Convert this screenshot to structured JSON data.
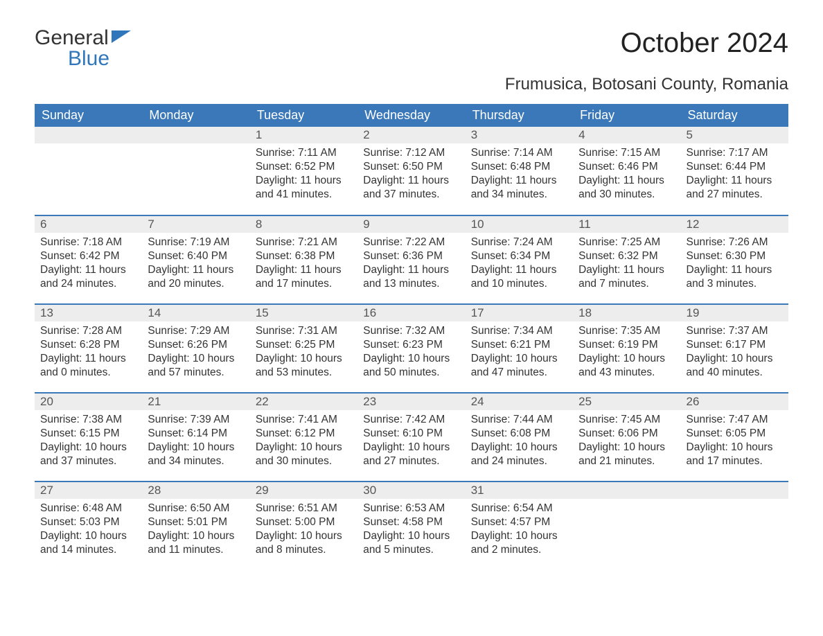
{
  "logo": {
    "line1": "General",
    "line2": "Blue",
    "flag_color": "#2f76bb"
  },
  "title": "October 2024",
  "location": "Frumusica, Botosani County, Romania",
  "colors": {
    "header_bg": "#3a78b9",
    "header_text": "#ffffff",
    "daynum_bg": "#ededed",
    "daynum_text": "#555555",
    "body_text": "#333333",
    "row_border": "#3a78b9",
    "page_bg": "#ffffff"
  },
  "fonts": {
    "title_size_pt": 30,
    "location_size_pt": 18,
    "dayhead_size_pt": 14,
    "daynum_size_pt": 13,
    "body_size_pt": 12
  },
  "day_headers": [
    "Sunday",
    "Monday",
    "Tuesday",
    "Wednesday",
    "Thursday",
    "Friday",
    "Saturday"
  ],
  "leading_blanks": 2,
  "days": [
    {
      "n": 1,
      "sunrise": "Sunrise: 7:11 AM",
      "sunset": "Sunset: 6:52 PM",
      "dl1": "Daylight: 11 hours",
      "dl2": "and 41 minutes."
    },
    {
      "n": 2,
      "sunrise": "Sunrise: 7:12 AM",
      "sunset": "Sunset: 6:50 PM",
      "dl1": "Daylight: 11 hours",
      "dl2": "and 37 minutes."
    },
    {
      "n": 3,
      "sunrise": "Sunrise: 7:14 AM",
      "sunset": "Sunset: 6:48 PM",
      "dl1": "Daylight: 11 hours",
      "dl2": "and 34 minutes."
    },
    {
      "n": 4,
      "sunrise": "Sunrise: 7:15 AM",
      "sunset": "Sunset: 6:46 PM",
      "dl1": "Daylight: 11 hours",
      "dl2": "and 30 minutes."
    },
    {
      "n": 5,
      "sunrise": "Sunrise: 7:17 AM",
      "sunset": "Sunset: 6:44 PM",
      "dl1": "Daylight: 11 hours",
      "dl2": "and 27 minutes."
    },
    {
      "n": 6,
      "sunrise": "Sunrise: 7:18 AM",
      "sunset": "Sunset: 6:42 PM",
      "dl1": "Daylight: 11 hours",
      "dl2": "and 24 minutes."
    },
    {
      "n": 7,
      "sunrise": "Sunrise: 7:19 AM",
      "sunset": "Sunset: 6:40 PM",
      "dl1": "Daylight: 11 hours",
      "dl2": "and 20 minutes."
    },
    {
      "n": 8,
      "sunrise": "Sunrise: 7:21 AM",
      "sunset": "Sunset: 6:38 PM",
      "dl1": "Daylight: 11 hours",
      "dl2": "and 17 minutes."
    },
    {
      "n": 9,
      "sunrise": "Sunrise: 7:22 AM",
      "sunset": "Sunset: 6:36 PM",
      "dl1": "Daylight: 11 hours",
      "dl2": "and 13 minutes."
    },
    {
      "n": 10,
      "sunrise": "Sunrise: 7:24 AM",
      "sunset": "Sunset: 6:34 PM",
      "dl1": "Daylight: 11 hours",
      "dl2": "and 10 minutes."
    },
    {
      "n": 11,
      "sunrise": "Sunrise: 7:25 AM",
      "sunset": "Sunset: 6:32 PM",
      "dl1": "Daylight: 11 hours",
      "dl2": "and 7 minutes."
    },
    {
      "n": 12,
      "sunrise": "Sunrise: 7:26 AM",
      "sunset": "Sunset: 6:30 PM",
      "dl1": "Daylight: 11 hours",
      "dl2": "and 3 minutes."
    },
    {
      "n": 13,
      "sunrise": "Sunrise: 7:28 AM",
      "sunset": "Sunset: 6:28 PM",
      "dl1": "Daylight: 11 hours",
      "dl2": "and 0 minutes."
    },
    {
      "n": 14,
      "sunrise": "Sunrise: 7:29 AM",
      "sunset": "Sunset: 6:26 PM",
      "dl1": "Daylight: 10 hours",
      "dl2": "and 57 minutes."
    },
    {
      "n": 15,
      "sunrise": "Sunrise: 7:31 AM",
      "sunset": "Sunset: 6:25 PM",
      "dl1": "Daylight: 10 hours",
      "dl2": "and 53 minutes."
    },
    {
      "n": 16,
      "sunrise": "Sunrise: 7:32 AM",
      "sunset": "Sunset: 6:23 PM",
      "dl1": "Daylight: 10 hours",
      "dl2": "and 50 minutes."
    },
    {
      "n": 17,
      "sunrise": "Sunrise: 7:34 AM",
      "sunset": "Sunset: 6:21 PM",
      "dl1": "Daylight: 10 hours",
      "dl2": "and 47 minutes."
    },
    {
      "n": 18,
      "sunrise": "Sunrise: 7:35 AM",
      "sunset": "Sunset: 6:19 PM",
      "dl1": "Daylight: 10 hours",
      "dl2": "and 43 minutes."
    },
    {
      "n": 19,
      "sunrise": "Sunrise: 7:37 AM",
      "sunset": "Sunset: 6:17 PM",
      "dl1": "Daylight: 10 hours",
      "dl2": "and 40 minutes."
    },
    {
      "n": 20,
      "sunrise": "Sunrise: 7:38 AM",
      "sunset": "Sunset: 6:15 PM",
      "dl1": "Daylight: 10 hours",
      "dl2": "and 37 minutes."
    },
    {
      "n": 21,
      "sunrise": "Sunrise: 7:39 AM",
      "sunset": "Sunset: 6:14 PM",
      "dl1": "Daylight: 10 hours",
      "dl2": "and 34 minutes."
    },
    {
      "n": 22,
      "sunrise": "Sunrise: 7:41 AM",
      "sunset": "Sunset: 6:12 PM",
      "dl1": "Daylight: 10 hours",
      "dl2": "and 30 minutes."
    },
    {
      "n": 23,
      "sunrise": "Sunrise: 7:42 AM",
      "sunset": "Sunset: 6:10 PM",
      "dl1": "Daylight: 10 hours",
      "dl2": "and 27 minutes."
    },
    {
      "n": 24,
      "sunrise": "Sunrise: 7:44 AM",
      "sunset": "Sunset: 6:08 PM",
      "dl1": "Daylight: 10 hours",
      "dl2": "and 24 minutes."
    },
    {
      "n": 25,
      "sunrise": "Sunrise: 7:45 AM",
      "sunset": "Sunset: 6:06 PM",
      "dl1": "Daylight: 10 hours",
      "dl2": "and 21 minutes."
    },
    {
      "n": 26,
      "sunrise": "Sunrise: 7:47 AM",
      "sunset": "Sunset: 6:05 PM",
      "dl1": "Daylight: 10 hours",
      "dl2": "and 17 minutes."
    },
    {
      "n": 27,
      "sunrise": "Sunrise: 6:48 AM",
      "sunset": "Sunset: 5:03 PM",
      "dl1": "Daylight: 10 hours",
      "dl2": "and 14 minutes."
    },
    {
      "n": 28,
      "sunrise": "Sunrise: 6:50 AM",
      "sunset": "Sunset: 5:01 PM",
      "dl1": "Daylight: 10 hours",
      "dl2": "and 11 minutes."
    },
    {
      "n": 29,
      "sunrise": "Sunrise: 6:51 AM",
      "sunset": "Sunset: 5:00 PM",
      "dl1": "Daylight: 10 hours",
      "dl2": "and 8 minutes."
    },
    {
      "n": 30,
      "sunrise": "Sunrise: 6:53 AM",
      "sunset": "Sunset: 4:58 PM",
      "dl1": "Daylight: 10 hours",
      "dl2": "and 5 minutes."
    },
    {
      "n": 31,
      "sunrise": "Sunrise: 6:54 AM",
      "sunset": "Sunset: 4:57 PM",
      "dl1": "Daylight: 10 hours",
      "dl2": "and 2 minutes."
    }
  ]
}
